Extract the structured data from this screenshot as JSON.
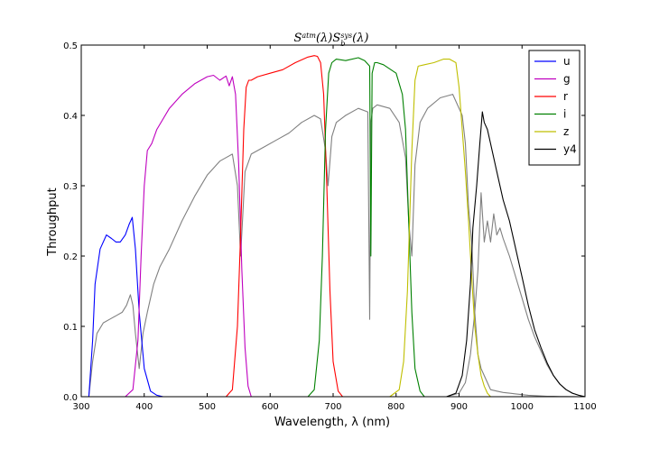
{
  "chart_data": {
    "type": "line",
    "title_parts": {
      "base": "S",
      "sup": "atm",
      "mid": "(λ)S",
      "sub": "b",
      "sup2": "sys",
      "end": "(λ)"
    },
    "xlabel": "Wavelength, λ (nm)",
    "ylabel": "Throughput",
    "xlim": [
      300,
      1100
    ],
    "ylim": [
      0.0,
      0.5
    ],
    "x_ticks": [
      300,
      400,
      500,
      600,
      700,
      800,
      900,
      1000,
      1100
    ],
    "y_ticks": [
      0.0,
      0.1,
      0.2,
      0.3,
      0.4,
      0.5
    ],
    "x_tick_labels": [
      "300",
      "400",
      "500",
      "600",
      "700",
      "800",
      "900",
      "1000",
      "1100"
    ],
    "y_tick_labels": [
      "0.0",
      "0.1",
      "0.2",
      "0.3",
      "0.4",
      "0.5"
    ],
    "legend_position": "top-right",
    "series": [
      {
        "name": "u",
        "color": "#0000ff",
        "x": [
          300,
          312,
          318,
          322,
          330,
          340,
          348,
          355,
          362,
          370,
          376,
          381,
          386,
          392,
          400,
          410,
          420,
          430
        ],
        "y": [
          0.0,
          0.0,
          0.08,
          0.16,
          0.21,
          0.23,
          0.225,
          0.22,
          0.22,
          0.23,
          0.245,
          0.255,
          0.21,
          0.12,
          0.04,
          0.008,
          0.002,
          0.0
        ]
      },
      {
        "name": "g",
        "color": "#bf00bf",
        "x": [
          370,
          382,
          390,
          395,
          400,
          405,
          412,
          420,
          440,
          460,
          480,
          500,
          510,
          520,
          530,
          535,
          540,
          545,
          550,
          555,
          560,
          565,
          570
        ],
        "y": [
          0.0,
          0.01,
          0.08,
          0.2,
          0.3,
          0.35,
          0.36,
          0.38,
          0.41,
          0.43,
          0.445,
          0.455,
          0.457,
          0.45,
          0.456,
          0.442,
          0.455,
          0.43,
          0.33,
          0.18,
          0.07,
          0.015,
          0.0
        ]
      },
      {
        "name": "r",
        "color": "#ff0000",
        "x": [
          530,
          540,
          548,
          553,
          558,
          562,
          566,
          570,
          580,
          600,
          620,
          640,
          660,
          670,
          675,
          680,
          685,
          690,
          695,
          700,
          708,
          715
        ],
        "y": [
          0.0,
          0.01,
          0.1,
          0.23,
          0.38,
          0.44,
          0.45,
          0.45,
          0.455,
          0.46,
          0.465,
          0.475,
          0.483,
          0.485,
          0.484,
          0.475,
          0.43,
          0.3,
          0.15,
          0.05,
          0.008,
          0.0
        ]
      },
      {
        "name": "i",
        "color": "#008000",
        "x": [
          660,
          670,
          678,
          683,
          688,
          693,
          698,
          705,
          720,
          740,
          750,
          758,
          760,
          762,
          766,
          770,
          780,
          800,
          810,
          815,
          820,
          825,
          830,
          838,
          845
        ],
        "y": [
          0.0,
          0.01,
          0.08,
          0.2,
          0.38,
          0.46,
          0.475,
          0.48,
          0.478,
          0.482,
          0.478,
          0.47,
          0.2,
          0.46,
          0.475,
          0.475,
          0.472,
          0.46,
          0.43,
          0.38,
          0.25,
          0.12,
          0.04,
          0.008,
          0.0
        ]
      },
      {
        "name": "z",
        "color": "#bfbf00",
        "x": [
          790,
          805,
          812,
          818,
          825,
          830,
          835,
          845,
          860,
          875,
          885,
          895,
          900,
          905,
          910,
          915,
          920,
          925,
          930,
          935,
          940,
          945,
          950
        ],
        "y": [
          0.0,
          0.01,
          0.05,
          0.15,
          0.35,
          0.45,
          0.47,
          0.472,
          0.475,
          0.48,
          0.48,
          0.475,
          0.44,
          0.38,
          0.32,
          0.25,
          0.17,
          0.1,
          0.06,
          0.03,
          0.015,
          0.005,
          0.0
        ]
      },
      {
        "name": "y4",
        "color": "#000000",
        "x": [
          880,
          895,
          905,
          912,
          918,
          922,
          928,
          933,
          937,
          940,
          945,
          950,
          960,
          970,
          980,
          990,
          1000,
          1010,
          1020,
          1030,
          1040,
          1050,
          1060,
          1070,
          1080,
          1090,
          1100
        ],
        "y": [
          0.0,
          0.005,
          0.03,
          0.08,
          0.16,
          0.24,
          0.3,
          0.36,
          0.405,
          0.39,
          0.38,
          0.36,
          0.32,
          0.28,
          0.25,
          0.21,
          0.17,
          0.13,
          0.095,
          0.07,
          0.048,
          0.03,
          0.018,
          0.01,
          0.005,
          0.002,
          0.0
        ]
      },
      {
        "name": "",
        "color": "#808080",
        "x": [
          300,
          312,
          318,
          325,
          335,
          345,
          355,
          365,
          372,
          378,
          382,
          386,
          392,
          398,
          405,
          415,
          425,
          440,
          460,
          480,
          500,
          520,
          530,
          540,
          548,
          553,
          556,
          560,
          570,
          590,
          610,
          630,
          650,
          670,
          680,
          688,
          692,
          698,
          705,
          720,
          740,
          755,
          758,
          760,
          763,
          770,
          790,
          805,
          815,
          820,
          825,
          830,
          838,
          850,
          870,
          890,
          905,
          910,
          915,
          920,
          925,
          930,
          935,
          940,
          945,
          950,
          960,
          970,
          980,
          990,
          1000,
          1010,
          1020,
          1030,
          1040,
          1050,
          1060,
          1070,
          1080,
          1090,
          1100
        ],
        "y": [
          0.0,
          0.0,
          0.05,
          0.09,
          0.105,
          0.11,
          0.115,
          0.12,
          0.13,
          0.145,
          0.13,
          0.09,
          0.04,
          0.09,
          0.12,
          0.16,
          0.185,
          0.21,
          0.25,
          0.285,
          0.315,
          0.335,
          0.34,
          0.345,
          0.3,
          0.2,
          0.25,
          0.32,
          0.345,
          0.355,
          0.365,
          0.375,
          0.39,
          0.4,
          0.395,
          0.35,
          0.3,
          0.37,
          0.39,
          0.4,
          0.41,
          0.405,
          0.11,
          0.39,
          0.41,
          0.415,
          0.41,
          0.39,
          0.34,
          0.25,
          0.2,
          0.33,
          0.39,
          0.41,
          0.425,
          0.43,
          0.4,
          0.36,
          0.27,
          0.22,
          0.12,
          0.06,
          0.04,
          0.03,
          0.02,
          0.01,
          0.008,
          0.006,
          0.005,
          0.004,
          0.003,
          0.002,
          0.0015,
          0.001,
          0.0007,
          0.0005,
          0.0003,
          0.0002,
          0.0001,
          0.0,
          0.0
        ]
      },
      {
        "name": "",
        "color": "#808080",
        "x": [
          880,
          900,
          910,
          918,
          925,
          930,
          935,
          940,
          945,
          950,
          955,
          960,
          965,
          970,
          980,
          990,
          1000,
          1010,
          1020,
          1030,
          1040,
          1050,
          1060,
          1070,
          1080,
          1090,
          1100
        ],
        "y": [
          0.0,
          0.005,
          0.02,
          0.06,
          0.12,
          0.18,
          0.29,
          0.22,
          0.25,
          0.22,
          0.26,
          0.23,
          0.24,
          0.225,
          0.2,
          0.17,
          0.14,
          0.11,
          0.085,
          0.065,
          0.045,
          0.03,
          0.018,
          0.01,
          0.005,
          0.002,
          0.0
        ]
      }
    ]
  }
}
